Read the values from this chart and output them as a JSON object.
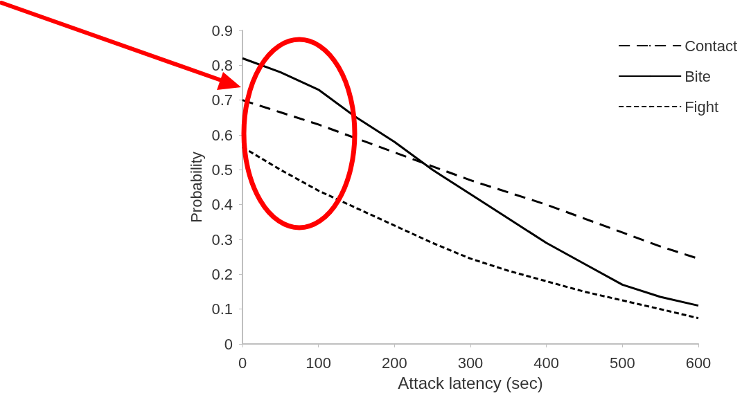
{
  "chart_data": {
    "type": "line",
    "xlabel": "Attack latency (sec)",
    "ylabel": "Probability",
    "x": [
      0,
      50,
      100,
      150,
      200,
      250,
      300,
      350,
      400,
      450,
      500,
      550,
      600
    ],
    "series": [
      {
        "name": "Contact",
        "color": "#000000",
        "line_style": "dashed",
        "values": [
          0.7,
          0.665,
          0.63,
          0.59,
          0.55,
          0.51,
          0.47,
          0.435,
          0.4,
          0.36,
          0.32,
          0.28,
          0.245
        ]
      },
      {
        "name": "Bite",
        "color": "#000000",
        "line_style": "solid",
        "values": [
          0.82,
          0.78,
          0.73,
          0.65,
          0.58,
          0.5,
          0.43,
          0.36,
          0.29,
          0.23,
          0.17,
          0.135,
          0.11
        ]
      },
      {
        "name": "Fight",
        "color": "#000000",
        "line_style": "dotted",
        "values": [
          0.565,
          0.5,
          0.44,
          0.39,
          0.34,
          0.29,
          0.245,
          0.21,
          0.18,
          0.15,
          0.125,
          0.1,
          0.074
        ]
      }
    ],
    "xlim": [
      0,
      600
    ],
    "xticks": [
      0,
      100,
      200,
      300,
      400,
      500,
      600
    ],
    "ylim": [
      0,
      0.9
    ],
    "yticks": [
      0,
      0.1,
      0.2,
      0.3,
      0.4,
      0.5,
      0.6,
      0.7,
      0.8,
      0.9
    ],
    "grid": false,
    "legend": "top right",
    "marker": "none"
  }
}
